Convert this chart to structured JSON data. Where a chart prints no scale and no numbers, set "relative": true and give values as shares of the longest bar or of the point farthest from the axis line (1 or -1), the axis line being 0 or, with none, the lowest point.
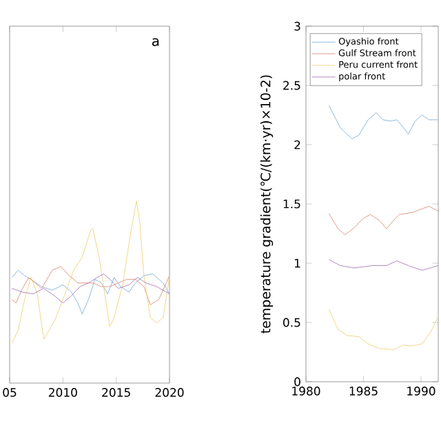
{
  "chart_data": [
    {
      "type": "line",
      "relative": true,
      "xlim": [
        2005,
        2020
      ],
      "xticks": [
        {
          "value": 2005,
          "label": "05"
        },
        2010,
        2015,
        2020
      ],
      "annotations": [
        "a"
      ],
      "series": [
        {
          "color": "#6fa8d6",
          "x": [
            2005.2,
            2005.8,
            2006.4,
            2007.0,
            2008.0,
            2009.0,
            2010.0,
            2010.8,
            2011.4,
            2011.8,
            2012.4,
            2013.0,
            2013.6,
            2014.2,
            2014.8,
            2015.4,
            2016.2,
            2016.8,
            2017.6,
            2018.4,
            2019.4,
            2020.0
          ],
          "values": [
            0.58,
            0.62,
            0.59,
            0.57,
            0.53,
            0.51,
            0.54,
            0.5,
            0.44,
            0.38,
            0.46,
            0.57,
            0.55,
            0.49,
            0.58,
            0.53,
            0.5,
            0.55,
            0.59,
            0.6,
            0.55,
            0.49
          ]
        },
        {
          "color": "#d9826a",
          "x": [
            2005.2,
            2005.6,
            2006.2,
            2006.8,
            2007.4,
            2008.0,
            2009.0,
            2009.8,
            2010.6,
            2011.4,
            2012.0,
            2012.8,
            2013.6,
            2014.4,
            2015.2,
            2016.0,
            2016.8,
            2017.6,
            2018.2,
            2019.0,
            2020.0
          ],
          "values": [
            0.46,
            0.44,
            0.52,
            0.58,
            0.55,
            0.52,
            0.62,
            0.64,
            0.59,
            0.55,
            0.55,
            0.55,
            0.53,
            0.53,
            0.55,
            0.57,
            0.57,
            0.53,
            0.43,
            0.46,
            0.59
          ]
        },
        {
          "color": "#f0cc6a",
          "x": [
            2005.2,
            2005.8,
            2006.4,
            2007.0,
            2007.6,
            2008.2,
            2009.2,
            2010.2,
            2011.0,
            2011.8,
            2012.6,
            2012.8,
            2013.4,
            2014.0,
            2014.4,
            2014.8,
            2015.6,
            2016.4,
            2016.9,
            2017.2,
            2017.6,
            2018.2,
            2018.8,
            2019.4,
            2020.0
          ],
          "values": [
            0.22,
            0.29,
            0.46,
            0.58,
            0.49,
            0.24,
            0.34,
            0.49,
            0.62,
            0.69,
            0.84,
            0.85,
            0.69,
            0.46,
            0.31,
            0.36,
            0.54,
            0.84,
            1.0,
            0.89,
            0.59,
            0.36,
            0.33,
            0.36,
            0.59
          ]
        },
        {
          "color": "#a06cb0",
          "x": [
            2005.2,
            2006.2,
            2007.2,
            2008.2,
            2009.2,
            2010.0,
            2010.8,
            2011.6,
            2012.4,
            2013.2,
            2013.8,
            2014.4,
            2015.2,
            2016.2,
            2017.0,
            2017.8,
            2018.8,
            2020.0
          ],
          "values": [
            0.52,
            0.5,
            0.49,
            0.52,
            0.48,
            0.44,
            0.48,
            0.53,
            0.55,
            0.58,
            0.6,
            0.57,
            0.52,
            0.54,
            0.58,
            0.55,
            0.53,
            0.49
          ]
        }
      ]
    },
    {
      "type": "line",
      "ylabel": "temperature gradient(℃/(km·yr)×10-2)",
      "xlim": [
        1980,
        1991.5
      ],
      "xticks": [
        1980,
        1985,
        1990
      ],
      "ylim": [
        0,
        3
      ],
      "yticks": [
        0,
        0.5,
        1,
        1.5,
        2,
        2.5,
        3
      ],
      "legend": "top left",
      "series": [
        {
          "name": "Oyashio front",
          "color": "#6fa8d6",
          "x": [
            1982.0,
            1983.0,
            1984.0,
            1984.6,
            1985.4,
            1986.1,
            1986.7,
            1987.3,
            1987.9,
            1988.5,
            1988.9,
            1989.5,
            1990.1,
            1990.7,
            1991.5
          ],
          "values": [
            2.33,
            2.14,
            2.05,
            2.08,
            2.21,
            2.27,
            2.21,
            2.2,
            2.21,
            2.14,
            2.09,
            2.2,
            2.25,
            2.21,
            2.21
          ]
        },
        {
          "name": "Gulf Stream front",
          "color": "#d9826a",
          "x": [
            1982.0,
            1982.8,
            1983.4,
            1984.2,
            1985.0,
            1985.6,
            1986.4,
            1987.0,
            1987.6,
            1988.1,
            1989.3,
            1990.1,
            1990.7,
            1991.5
          ],
          "values": [
            1.42,
            1.29,
            1.24,
            1.3,
            1.38,
            1.41,
            1.36,
            1.29,
            1.36,
            1.41,
            1.43,
            1.46,
            1.48,
            1.44
          ]
        },
        {
          "name": "Peru current front",
          "color": "#f0cc6a",
          "x": [
            1982.0,
            1982.8,
            1983.6,
            1984.6,
            1985.4,
            1986.4,
            1987.6,
            1988.5,
            1989.1,
            1990.1,
            1990.9,
            1991.5
          ],
          "values": [
            0.61,
            0.44,
            0.39,
            0.38,
            0.32,
            0.28,
            0.27,
            0.31,
            0.3,
            0.32,
            0.43,
            0.55
          ]
        },
        {
          "name": "polar front",
          "color": "#a06cb0",
          "x": [
            1982.0,
            1983.0,
            1984.2,
            1985.8,
            1987.0,
            1987.9,
            1988.9,
            1990.1,
            1991.5
          ],
          "values": [
            1.03,
            0.98,
            0.96,
            0.98,
            0.98,
            1.02,
            0.98,
            0.94,
            0.98
          ]
        }
      ]
    }
  ]
}
